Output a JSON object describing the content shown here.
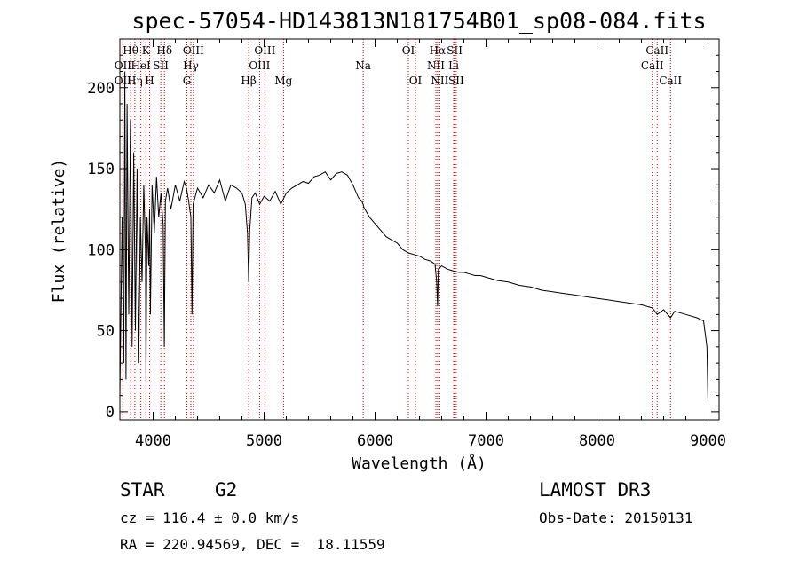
{
  "chart_data": {
    "type": "line",
    "title": "spec-57054-HD143813N181754B01_sp08-084.fits",
    "xlabel": "Wavelength (Å)",
    "ylabel": "Flux (relative)",
    "xlim": [
      3700,
      9100
    ],
    "ylim": [
      -5,
      230
    ],
    "xticks": [
      4000,
      5000,
      6000,
      7000,
      8000,
      9000
    ],
    "xtick_labels": [
      "4000",
      "5000",
      "6000",
      "7000",
      "8000",
      "9000"
    ],
    "yticks": [
      0,
      50,
      100,
      150,
      200
    ],
    "ytick_labels": [
      "0",
      "50",
      "100",
      "150",
      "200"
    ],
    "series": [
      {
        "name": "flux",
        "x": [
          3700,
          3720,
          3735,
          3745,
          3755,
          3765,
          3780,
          3795,
          3810,
          3825,
          3840,
          3855,
          3870,
          3885,
          3900,
          3915,
          3930,
          3935,
          3945,
          3960,
          3968,
          3975,
          3990,
          4010,
          4030,
          4050,
          4070,
          4090,
          4101,
          4110,
          4130,
          4160,
          4200,
          4240,
          4280,
          4300,
          4320,
          4340,
          4350,
          4360,
          4400,
          4450,
          4500,
          4550,
          4600,
          4650,
          4700,
          4750,
          4800,
          4830,
          4850,
          4861,
          4870,
          4890,
          4920,
          4960,
          5000,
          5050,
          5100,
          5150,
          5200,
          5250,
          5300,
          5350,
          5400,
          5450,
          5500,
          5550,
          5600,
          5650,
          5700,
          5750,
          5800,
          5850,
          5880,
          5892,
          5900,
          5950,
          6000,
          6050,
          6100,
          6150,
          6200,
          6250,
          6300,
          6350,
          6400,
          6450,
          6500,
          6540,
          6555,
          6563,
          6570,
          6600,
          6650,
          6700,
          6750,
          6800,
          6850,
          6900,
          6950,
          7000,
          7100,
          7200,
          7300,
          7400,
          7500,
          7600,
          7700,
          7800,
          7900,
          8000,
          8100,
          8200,
          8300,
          8400,
          8500,
          8542,
          8600,
          8662,
          8700,
          8800,
          8900,
          8960,
          8990,
          9000
        ],
        "values": [
          10,
          120,
          30,
          210,
          20,
          190,
          60,
          180,
          40,
          160,
          50,
          150,
          30,
          120,
          80,
          140,
          100,
          20,
          120,
          90,
          125,
          60,
          140,
          110,
          145,
          120,
          135,
          115,
          40,
          130,
          138,
          125,
          140,
          130,
          142,
          138,
          130,
          120,
          60,
          128,
          138,
          132,
          140,
          135,
          143,
          130,
          140,
          138,
          135,
          128,
          110,
          80,
          112,
          132,
          135,
          128,
          133,
          130,
          136,
          128,
          135,
          138,
          140,
          142,
          141,
          145,
          146,
          148,
          143,
          147,
          148,
          146,
          140,
          132,
          130,
          128,
          126,
          120,
          116,
          112,
          108,
          106,
          104,
          100,
          98,
          97,
          96,
          94,
          93,
          91,
          80,
          65,
          88,
          90,
          88,
          87,
          86,
          86,
          85,
          84,
          84,
          83,
          81,
          80,
          78,
          77,
          75,
          74,
          73,
          72,
          71,
          70,
          69,
          68,
          67,
          66,
          64,
          60,
          63,
          58,
          62,
          60,
          58,
          56,
          40,
          5
        ]
      }
    ],
    "line_markers": [
      {
        "label": "OII",
        "wavelength": 3727,
        "row": 3
      },
      {
        "label": "Hθ",
        "wavelength": 3797,
        "row": 1
      },
      {
        "label": "OII",
        "wavelength": 3727,
        "row": 2
      },
      {
        "label": "Hη",
        "wavelength": 3835,
        "row": 3
      },
      {
        "label": "HeI",
        "wavelength": 3889,
        "row": 2
      },
      {
        "label": "K",
        "wavelength": 3934,
        "row": 1
      },
      {
        "label": "H",
        "wavelength": 3968,
        "row": 3
      },
      {
        "label": "SII",
        "wavelength": 4069,
        "row": 2
      },
      {
        "label": "Hδ",
        "wavelength": 4102,
        "row": 1
      },
      {
        "label": "OIII",
        "wavelength": 4363,
        "row": 1
      },
      {
        "label": "Hγ",
        "wavelength": 4340,
        "row": 2
      },
      {
        "label": "G",
        "wavelength": 4304,
        "row": 3
      },
      {
        "label": "Hβ",
        "wavelength": 4861,
        "row": 3
      },
      {
        "label": "OIII",
        "wavelength": 5007,
        "row": 1
      },
      {
        "label": "OIII",
        "wavelength": 4959,
        "row": 2
      },
      {
        "label": "Mg",
        "wavelength": 5175,
        "row": 3
      },
      {
        "label": "Na",
        "wavelength": 5893,
        "row": 2
      },
      {
        "label": "OI",
        "wavelength": 6300,
        "row": 1
      },
      {
        "label": "OI",
        "wavelength": 6364,
        "row": 3
      },
      {
        "label": "Hα",
        "wavelength": 6563,
        "row": 1
      },
      {
        "label": "NII",
        "wavelength": 6548,
        "row": 2
      },
      {
        "label": "NII",
        "wavelength": 6583,
        "row": 3
      },
      {
        "label": "SII",
        "wavelength": 6717,
        "row": 1
      },
      {
        "label": "Li",
        "wavelength": 6708,
        "row": 2
      },
      {
        "label": "SII",
        "wavelength": 6731,
        "row": 3
      },
      {
        "label": "CaII",
        "wavelength": 8542,
        "row": 1
      },
      {
        "label": "CaII",
        "wavelength": 8498,
        "row": 2
      },
      {
        "label": "CaII",
        "wavelength": 8662,
        "row": 3
      }
    ]
  },
  "info": {
    "object_class": "STAR",
    "subclass": "G2",
    "survey": "LAMOST DR3",
    "cz": "cz = 116.4 ± 0.0 km/s",
    "obs_date": "Obs-Date: 20150131",
    "coords": "RA = 220.94569, DEC =  18.11559"
  }
}
